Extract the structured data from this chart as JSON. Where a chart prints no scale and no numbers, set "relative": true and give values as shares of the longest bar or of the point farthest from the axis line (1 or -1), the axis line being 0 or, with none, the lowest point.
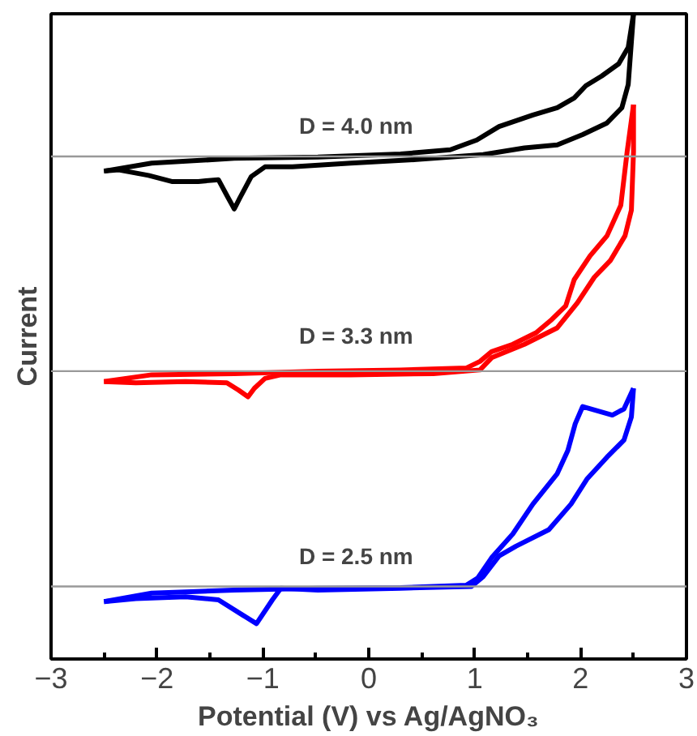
{
  "chart_data": {
    "type": "line",
    "relative": true,
    "xlabel": "Potential (V) vs Ag/AgNO₃",
    "ylabel": "Current",
    "xlim": [
      -3,
      3
    ],
    "xticks": [
      -3,
      -2,
      -1,
      0,
      1,
      2,
      3
    ],
    "grid": false,
    "line_style": "solid",
    "marker": "none",
    "ref_lines": [
      {
        "axis": "y",
        "value": 0.766,
        "color": "#999999"
      },
      {
        "axis": "y",
        "value": 0.414,
        "color": "#999999"
      },
      {
        "axis": "y",
        "value": 0.061,
        "color": "#999999"
      }
    ],
    "annotations": [
      "D = 4.0 nm",
      "D = 3.3 nm",
      "D = 2.5 nm"
    ],
    "series": [
      {
        "color": "#000000",
        "x": [
          -2.5,
          -2.05,
          -1.27,
          -0.48,
          0.3,
          0.77,
          1.02,
          1.23,
          1.55,
          1.78,
          1.94,
          2.05,
          2.2,
          2.36,
          2.45,
          2.5
        ],
        "values": [
          0.742,
          0.755,
          0.763,
          0.765,
          0.77,
          0.777,
          0.793,
          0.815,
          0.834,
          0.846,
          0.862,
          0.882,
          0.898,
          0.918,
          0.945,
          1.0
        ]
      },
      {
        "color": "#ff0000",
        "x": [
          -2.5,
          -2.05,
          -1.27,
          -0.48,
          0.3,
          0.92,
          1.05,
          1.16,
          1.36,
          1.58,
          1.73,
          1.86,
          1.94,
          2.09,
          2.25,
          2.38,
          2.44,
          2.5
        ],
        "values": [
          0.397,
          0.408,
          0.41,
          0.414,
          0.416,
          0.419,
          0.43,
          0.446,
          0.458,
          0.477,
          0.499,
          0.521,
          0.564,
          0.603,
          0.636,
          0.686,
          0.774,
          0.851
        ]
      },
      {
        "color": "#0000ff",
        "x": [
          -2.5,
          -2.05,
          -1.27,
          -0.48,
          0.3,
          0.92,
          1.03,
          1.16,
          1.36,
          1.55,
          1.78,
          1.88,
          1.95,
          2.02,
          2.14,
          2.3,
          2.41,
          2.5
        ],
        "values": [
          0.036,
          0.05,
          0.055,
          0.058,
          0.059,
          0.063,
          0.075,
          0.108,
          0.147,
          0.196,
          0.246,
          0.284,
          0.328,
          0.356,
          0.35,
          0.342,
          0.352,
          0.386
        ]
      },
      {
        "color": "#000000",
        "x": [
          2.5,
          2.48,
          2.45,
          2.39,
          2.25,
          2.02,
          1.78,
          1.47,
          1.08,
          0.45,
          -0.17,
          -0.72,
          -0.98,
          -1.11,
          -1.22,
          -1.27,
          -1.33,
          -1.42,
          -1.61,
          -1.86,
          -2.08,
          -2.36,
          -2.5
        ],
        "values": [
          1.0,
          0.954,
          0.884,
          0.846,
          0.821,
          0.802,
          0.785,
          0.78,
          0.769,
          0.761,
          0.755,
          0.749,
          0.749,
          0.733,
          0.697,
          0.68,
          0.699,
          0.728,
          0.725,
          0.725,
          0.735,
          0.744,
          0.742
        ]
      },
      {
        "color": "#ff0000",
        "x": [
          2.5,
          2.5,
          2.48,
          2.42,
          2.28,
          2.13,
          1.97,
          1.78,
          1.47,
          1.16,
          1.05,
          0.61,
          -0.17,
          -0.83,
          -0.98,
          -1.08,
          -1.14,
          -1.23,
          -1.34,
          -1.73,
          -2.2,
          -2.5
        ],
        "values": [
          0.851,
          0.774,
          0.678,
          0.636,
          0.595,
          0.568,
          0.526,
          0.485,
          0.458,
          0.436,
          0.416,
          0.41,
          0.408,
          0.408,
          0.402,
          0.386,
          0.372,
          0.383,
          0.395,
          0.397,
          0.395,
          0.397
        ]
      },
      {
        "color": "#0000ff",
        "x": [
          2.5,
          2.48,
          2.41,
          2.25,
          2.06,
          1.91,
          1.7,
          1.39,
          1.23,
          1.08,
          0.97,
          0.3,
          -0.48,
          -0.83,
          -0.91,
          -1.06,
          -1.19,
          -1.42,
          -1.73,
          -2.2,
          -2.5
        ],
        "values": [
          0.386,
          0.339,
          0.301,
          0.273,
          0.237,
          0.196,
          0.154,
          0.127,
          0.111,
          0.077,
          0.061,
          0.058,
          0.055,
          0.058,
          0.039,
          0,
          0.014,
          0.039,
          0.044,
          0.041,
          0.036
        ]
      }
    ]
  }
}
